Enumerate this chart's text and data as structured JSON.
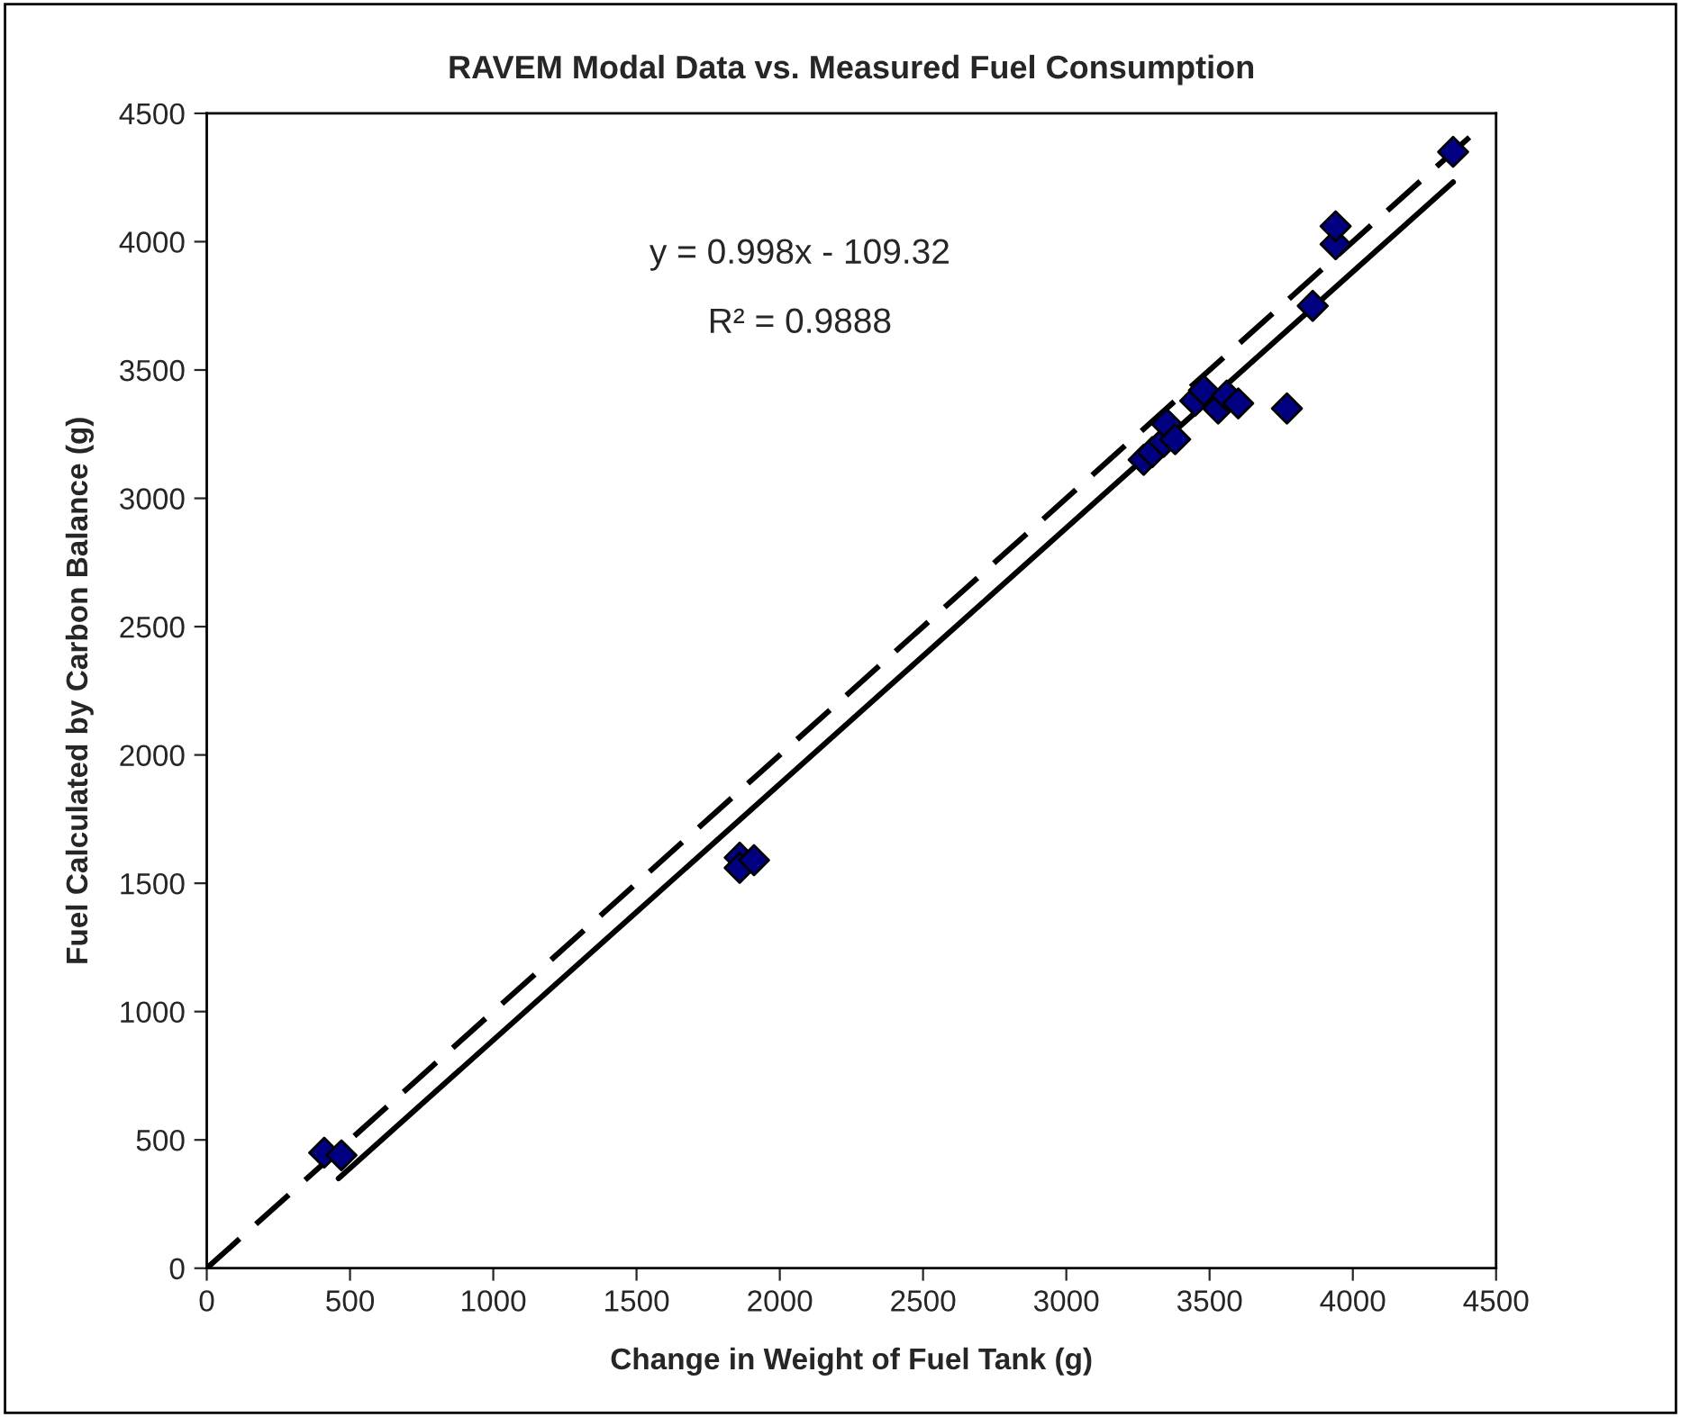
{
  "chart_data": {
    "type": "scatter",
    "title": "RAVEM Modal Data vs. Measured Fuel Consumption",
    "xlabel": "Change in Weight of Fuel Tank (g)",
    "ylabel": "Fuel Calculated by Carbon Balance (g)",
    "xlim": [
      0,
      4500
    ],
    "ylim": [
      0,
      4500
    ],
    "xticks": [
      0,
      500,
      1000,
      1500,
      2000,
      2500,
      3000,
      3500,
      4000,
      4500
    ],
    "yticks": [
      0,
      500,
      1000,
      1500,
      2000,
      2500,
      3000,
      3500,
      4000,
      4500
    ],
    "grid": false,
    "legend": false,
    "annotations": [
      "y = 0.998x - 109.32",
      "R² = 0.9888"
    ],
    "series": [
      {
        "marker": "diamond",
        "color": "#000080",
        "x": [
          410,
          470,
          1860,
          1860,
          1910,
          3270,
          3300,
          3340,
          3350,
          3380,
          3450,
          3480,
          3530,
          3560,
          3600,
          3770,
          3860,
          3940,
          3940,
          4350
        ],
        "values": [
          450,
          440,
          1600,
          1560,
          1590,
          3150,
          3180,
          3220,
          3290,
          3230,
          3380,
          3420,
          3350,
          3400,
          3370,
          3350,
          3750,
          3990,
          4060,
          4350
        ]
      },
      {
        "type": "line",
        "color": "#000000",
        "line_style": "solid",
        "x": [
          460,
          4350
        ],
        "values": [
          350,
          4232
        ]
      },
      {
        "type": "line",
        "color": "#000000",
        "line_style": "dashed",
        "x": [
          0,
          4420
        ],
        "values": [
          0,
          4420
        ]
      }
    ]
  }
}
